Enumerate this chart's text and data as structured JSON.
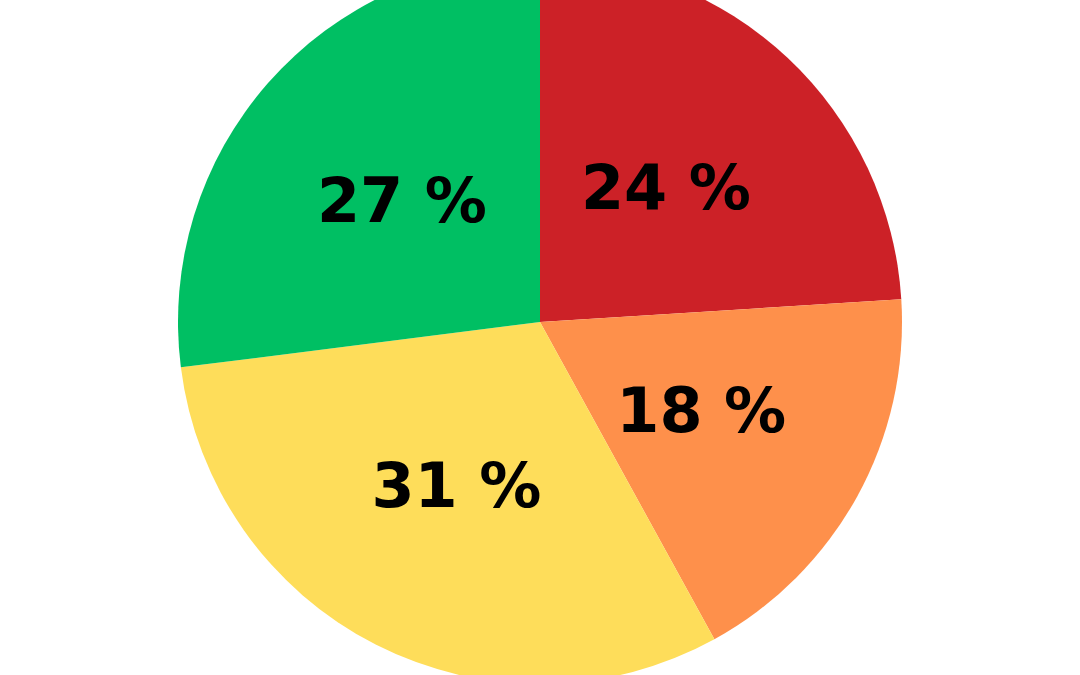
{
  "chart_data": {
    "type": "pie",
    "categories": [
      null,
      null,
      null,
      null
    ],
    "values": [
      24,
      18,
      31,
      27
    ],
    "colors": [
      "#cc2127",
      "#fe904b",
      "#fedd5a",
      "#00bf63"
    ],
    "value_labels": [
      "24 %",
      "18 %",
      "31 %",
      "27 %"
    ]
  }
}
